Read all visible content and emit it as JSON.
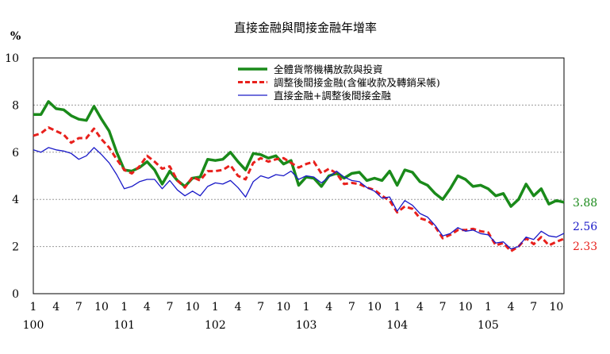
{
  "chart_data": {
    "type": "line",
    "title": "直接金融與間接金融年增率",
    "ylabel": "%",
    "ylim": [
      0,
      10
    ],
    "yticks": [
      0,
      2,
      4,
      6,
      8,
      10
    ],
    "grid": "horizontal-dashed",
    "legend_position": "top-right",
    "x_tick_labels": [
      {
        "index": 0,
        "label": "1"
      },
      {
        "index": 3,
        "label": "4"
      },
      {
        "index": 6,
        "label": "7"
      },
      {
        "index": 9,
        "label": "10"
      },
      {
        "index": 12,
        "label": "1"
      },
      {
        "index": 15,
        "label": "4"
      },
      {
        "index": 18,
        "label": "7"
      },
      {
        "index": 21,
        "label": "10"
      },
      {
        "index": 24,
        "label": "1"
      },
      {
        "index": 27,
        "label": "4"
      },
      {
        "index": 30,
        "label": "7"
      },
      {
        "index": 33,
        "label": "10"
      },
      {
        "index": 36,
        "label": "1"
      },
      {
        "index": 39,
        "label": "4"
      },
      {
        "index": 42,
        "label": "7"
      },
      {
        "index": 45,
        "label": "10"
      },
      {
        "index": 48,
        "label": "1"
      },
      {
        "index": 51,
        "label": "4"
      },
      {
        "index": 54,
        "label": "7"
      },
      {
        "index": 57,
        "label": "10"
      },
      {
        "index": 60,
        "label": "1"
      },
      {
        "index": 63,
        "label": "4"
      },
      {
        "index": 66,
        "label": "7"
      },
      {
        "index": 69,
        "label": "10"
      }
    ],
    "year_labels": [
      {
        "index": 0,
        "label": "100"
      },
      {
        "index": 12,
        "label": "101"
      },
      {
        "index": 24,
        "label": "102"
      },
      {
        "index": 36,
        "label": "103"
      },
      {
        "index": 48,
        "label": "104"
      },
      {
        "index": 60,
        "label": "105"
      }
    ],
    "n_points": 71,
    "series": [
      {
        "name": "全體貨幣機構放款與投資",
        "color": "#1a8a1a",
        "style": "solid-thick",
        "end_label": "3.88",
        "values": [
          7.6,
          7.6,
          8.15,
          7.85,
          7.8,
          7.55,
          7.4,
          7.35,
          7.95,
          7.4,
          6.9,
          6.0,
          5.25,
          5.2,
          5.35,
          5.6,
          5.25,
          4.65,
          5.2,
          4.8,
          4.55,
          4.9,
          4.95,
          5.7,
          5.65,
          5.7,
          6.0,
          5.6,
          5.25,
          5.95,
          5.9,
          5.75,
          5.85,
          5.5,
          5.65,
          4.6,
          4.95,
          4.9,
          4.55,
          5.0,
          5.1,
          4.9,
          5.1,
          5.15,
          4.8,
          4.9,
          4.8,
          5.2,
          4.6,
          5.25,
          5.15,
          4.75,
          4.6,
          4.25,
          4.0,
          4.45,
          5.0,
          4.85,
          4.55,
          4.6,
          4.45,
          4.15,
          4.25,
          3.7,
          4.0,
          4.65,
          4.15,
          4.45,
          3.8,
          3.95,
          3.88
        ]
      },
      {
        "name": "調整後間接金融(含催收款及轉銷呆帳)",
        "color": "#e8201c",
        "style": "dashed",
        "end_label": "2.33",
        "values": [
          6.7,
          6.8,
          7.05,
          6.9,
          6.75,
          6.4,
          6.6,
          6.6,
          7.0,
          6.55,
          6.2,
          5.7,
          5.25,
          5.1,
          5.4,
          5.85,
          5.6,
          5.3,
          5.4,
          4.8,
          4.5,
          4.95,
          4.8,
          5.2,
          5.2,
          5.25,
          5.45,
          5.0,
          4.85,
          5.55,
          5.75,
          5.6,
          5.7,
          5.75,
          5.55,
          5.35,
          5.5,
          5.6,
          5.1,
          5.3,
          5.1,
          4.65,
          4.7,
          4.65,
          4.5,
          4.4,
          4.15,
          3.95,
          3.45,
          3.7,
          3.6,
          3.2,
          3.1,
          2.85,
          2.35,
          2.5,
          2.7,
          2.7,
          2.75,
          2.65,
          2.6,
          2.05,
          2.15,
          1.8,
          2.0,
          2.35,
          2.1,
          2.4,
          2.05,
          2.2,
          2.33
        ]
      },
      {
        "name": "直接金融+調整後間接金融",
        "color": "#1a1ac8",
        "style": "solid-thin",
        "end_label": "2.56",
        "values": [
          6.1,
          6.0,
          6.2,
          6.1,
          6.05,
          5.95,
          5.7,
          5.85,
          6.2,
          5.9,
          5.55,
          5.05,
          4.45,
          4.55,
          4.75,
          4.85,
          4.85,
          4.45,
          4.8,
          4.4,
          4.15,
          4.35,
          4.15,
          4.55,
          4.7,
          4.65,
          4.8,
          4.5,
          4.1,
          4.75,
          5.0,
          4.9,
          5.05,
          5.0,
          5.2,
          4.85,
          5.0,
          4.95,
          4.7,
          4.95,
          5.2,
          4.95,
          4.8,
          4.75,
          4.5,
          4.35,
          4.05,
          4.1,
          3.5,
          3.95,
          3.75,
          3.4,
          3.25,
          2.9,
          2.45,
          2.55,
          2.8,
          2.65,
          2.7,
          2.55,
          2.5,
          2.15,
          2.2,
          1.9,
          2.0,
          2.4,
          2.3,
          2.65,
          2.45,
          2.4,
          2.56
        ]
      }
    ]
  }
}
